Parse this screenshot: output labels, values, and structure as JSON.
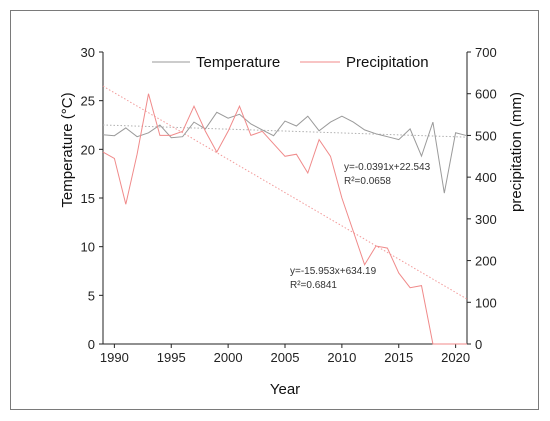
{
  "chart_data": {
    "type": "line",
    "xlabel": "Year",
    "ylabel_left": "Temperature (°C)",
    "ylabel_right": "precipitation (mm)",
    "xlim": [
      1989,
      2021
    ],
    "ylim_left": [
      0,
      30
    ],
    "ylim_right": [
      0,
      700
    ],
    "xticks": [
      1990,
      1995,
      2000,
      2005,
      2010,
      2015,
      2020
    ],
    "yticks_left": [
      0,
      5,
      10,
      15,
      20,
      25,
      30
    ],
    "yticks_right": [
      0,
      100,
      200,
      300,
      400,
      500,
      600,
      700
    ],
    "legend_position": "top",
    "x": [
      1989,
      1990,
      1991,
      1992,
      1993,
      1994,
      1995,
      1996,
      1997,
      1998,
      1999,
      2000,
      2001,
      2002,
      2003,
      2004,
      2005,
      2006,
      2007,
      2008,
      2009,
      2010,
      2011,
      2012,
      2013,
      2014,
      2015,
      2016,
      2017,
      2018,
      2019,
      2020,
      2021
    ],
    "series": [
      {
        "name": "Temperature",
        "axis": "left",
        "color": "#9a9a9a",
        "values": [
          21.5,
          21.4,
          22.2,
          21.3,
          21.7,
          22.5,
          21.2,
          21.3,
          22.8,
          22.1,
          23.8,
          23.2,
          23.6,
          22.6,
          22.0,
          21.4,
          22.9,
          22.4,
          23.4,
          21.9,
          22.8,
          23.4,
          22.8,
          22.0,
          21.6,
          21.3,
          21.0,
          22.1,
          19.3,
          22.8,
          15.5,
          21.7,
          21.4
        ]
      },
      {
        "name": "Precipitation",
        "axis": "right",
        "color": "#f08a8a",
        "values": [
          460,
          445,
          335,
          455,
          600,
          500,
          500,
          510,
          570,
          510,
          460,
          510,
          570,
          500,
          510,
          480,
          450,
          455,
          410,
          490,
          450,
          350,
          270,
          190,
          235,
          230,
          170,
          135,
          140,
          0,
          0,
          0,
          0
        ]
      }
    ],
    "trendlines": [
      {
        "series": "Temperature",
        "slope": -0.0391,
        "intercept": 22.543,
        "x0": 1989,
        "axis": "left",
        "color": "#b0b0b0"
      },
      {
        "series": "Precipitation",
        "slope": -15.953,
        "intercept": 634.19,
        "x0": 1989,
        "axis": "right",
        "color": "#f29a9a"
      }
    ],
    "annotations": [
      {
        "line1": "y=-0.0391x+22.543",
        "line2": "R²=0.0658"
      },
      {
        "line1": "y=-15.953x+634.19",
        "line2": "R²=0.6841"
      }
    ]
  }
}
